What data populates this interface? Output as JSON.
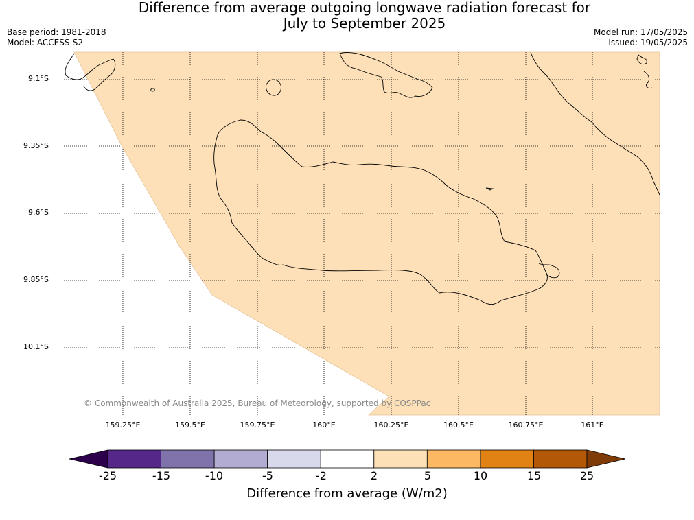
{
  "title_line1": "Difference from average outgoing longwave radiation forecast for",
  "title_line2": "July to September 2025",
  "meta": {
    "base_period": "Base period: 1981-2018",
    "model": "Model: ACCESS-S2",
    "model_run": "Model run: 17/05/2025",
    "issued": "Issued: 19/05/2025"
  },
  "map": {
    "fill_color": "#fde0b8",
    "lat_labels": [
      "9.1°S",
      "9.35°S",
      "9.6°S",
      "9.85°S",
      "10.1°S"
    ],
    "lon_labels": [
      "159.25°E",
      "159.5°E",
      "159.75°E",
      "160°E",
      "160.25°E",
      "160.5°E",
      "160.75°E",
      "161°E"
    ],
    "copyright": "© Commonwealth of Australia 2025, Bureau of Meteorology, supported by COSPPac"
  },
  "colorbar": {
    "title": "Difference from average (W/m2)",
    "ticks": [
      "-25",
      "-15",
      "-10",
      "-5",
      "-2",
      "2",
      "5",
      "10",
      "15",
      "25"
    ],
    "colors": [
      "#2d004b",
      "#542788",
      "#8073ac",
      "#b2abd2",
      "#d8daeb",
      "#ffffff",
      "#fee0b6",
      "#fdb863",
      "#e08214",
      "#b35806",
      "#7f3b08"
    ]
  }
}
